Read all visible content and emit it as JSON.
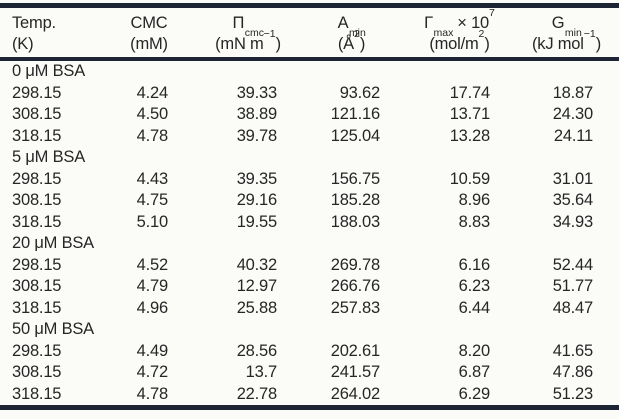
{
  "colors": {
    "rule": "#1d2433",
    "text": "#262626",
    "background": "#fbfbf8"
  },
  "table": {
    "columns": [
      {
        "id": "temp",
        "l1": [
          {
            "t": "Temp."
          }
        ],
        "l2": [
          {
            "t": "(K)"
          }
        ]
      },
      {
        "id": "cmc",
        "l1": [
          {
            "t": "CMC"
          }
        ],
        "l2": [
          {
            "t": "(mM)"
          }
        ]
      },
      {
        "id": "pi-cmc",
        "l1": [
          {
            "t": "Π"
          },
          {
            "t": "cmc",
            "s": "sub"
          }
        ],
        "l2": [
          {
            "t": "(mN m"
          },
          {
            "t": "−1",
            "s": "sup"
          },
          {
            "t": ")"
          }
        ]
      },
      {
        "id": "a-min",
        "l1": [
          {
            "t": "A"
          },
          {
            "t": "min",
            "s": "sub"
          }
        ],
        "l2": [
          {
            "t": "(Å"
          },
          {
            "t": "2",
            "s": "sup"
          },
          {
            "t": ")"
          }
        ]
      },
      {
        "id": "gamma-max",
        "l1": [
          {
            "t": "Γ"
          },
          {
            "t": "max",
            "s": "sub"
          },
          {
            "t": " × 10"
          },
          {
            "t": "7",
            "s": "sup"
          }
        ],
        "l2": [
          {
            "t": "(mol/m"
          },
          {
            "t": "2",
            "s": "sup"
          },
          {
            "t": ")"
          }
        ]
      },
      {
        "id": "g-min",
        "l1": [
          {
            "t": "G"
          },
          {
            "t": "min",
            "s": "sub"
          }
        ],
        "l2": [
          {
            "t": "(kJ mol"
          },
          {
            "t": "−1",
            "s": "sup"
          },
          {
            "t": ")"
          }
        ]
      }
    ],
    "rows": [
      {
        "group": "0 μM BSA"
      },
      {
        "cells": [
          "298.15",
          "4.24",
          "39.33",
          "93.62",
          "17.74",
          "18.87"
        ]
      },
      {
        "cells": [
          "308.15",
          "4.50",
          "38.89",
          "121.16",
          "13.71",
          "24.30"
        ]
      },
      {
        "cells": [
          "318.15",
          "4.78",
          "39.78",
          "125.04",
          "13.28",
          "24.11"
        ]
      },
      {
        "group": "5 μM BSA"
      },
      {
        "cells": [
          "298.15",
          "4.43",
          "39.35",
          "156.75",
          "10.59",
          "31.01"
        ]
      },
      {
        "cells": [
          "308.15",
          "4.75",
          "29.16",
          "185.28",
          "8.96",
          "35.64"
        ]
      },
      {
        "cells": [
          "318.15",
          "5.10",
          "19.55",
          "188.03",
          "8.83",
          "34.93"
        ]
      },
      {
        "group": "20 μM BSA"
      },
      {
        "cells": [
          "298.15",
          "4.52",
          "40.32",
          "269.78",
          "6.16",
          "52.44"
        ]
      },
      {
        "cells": [
          "308.15",
          "4.79",
          "12.97",
          "266.76",
          "6.23",
          "51.77"
        ]
      },
      {
        "cells": [
          "318.15",
          "4.96",
          "25.88",
          "257.83",
          "6.44",
          "48.47"
        ]
      },
      {
        "group": "50 μM BSA"
      },
      {
        "cells": [
          "298.15",
          "4.49",
          "28.56",
          "202.61",
          "8.20",
          "41.65"
        ]
      },
      {
        "cells": [
          "308.15",
          "4.72",
          "13.7",
          "241.57",
          "6.87",
          "47.86"
        ]
      },
      {
        "cells": [
          "318.15",
          "4.78",
          "22.78",
          "264.02",
          "6.29",
          "51.23"
        ]
      }
    ]
  }
}
